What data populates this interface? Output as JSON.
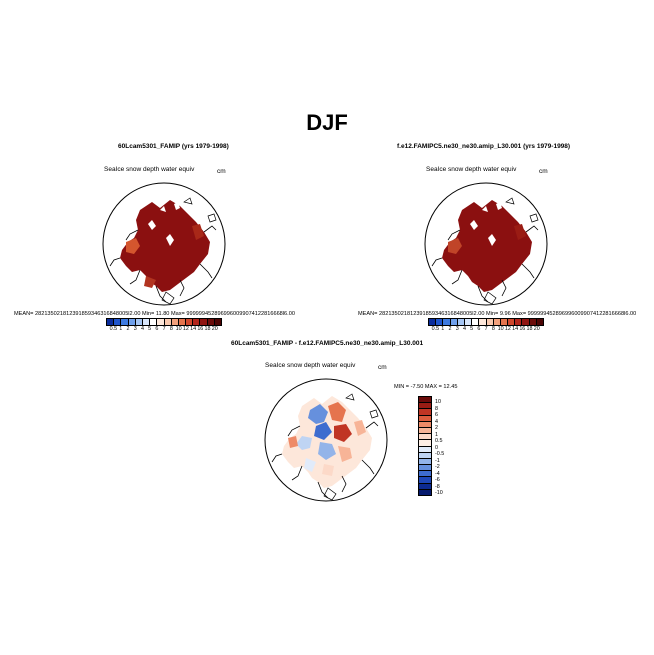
{
  "title": "DJF",
  "variable_label": "SeaIce snow depth water equiv",
  "units": "cm",
  "panels": [
    {
      "case": "60Lcam5301_FAMIP (yrs 1979-1998)",
      "stats": "MEAN= 282135021812391859346316848005l2.00 Min= 11.80 Max= 9999994528969960099074122816668l6.00",
      "field": "snow-depth"
    },
    {
      "case": "f.e12.FAMIPC5.ne30_ne30.amip_L30.001 (yrs 1979-1998)",
      "stats": "MEAN= 282135021812391859346316848005l2.00 Min= 9.96 Max= 9999994528969960099074122816668l6.00",
      "field": "snow-depth"
    }
  ],
  "difference_panel": {
    "case": "60Lcam5301_FAMIP - f.e12.FAMIPC5.ne30_ne30.amip_L30.001",
    "stats": "MIN = -7.50 MAX = 12.45"
  },
  "colorbar_levels": [
    "0.5",
    "1",
    "2",
    "3",
    "4",
    "5",
    "6",
    "7",
    "8",
    "10",
    "12",
    "14",
    "16",
    "18",
    "20"
  ],
  "colorbar_colors": [
    "#0a2c9c",
    "#1f55cc",
    "#3d7ae0",
    "#6fa0ec",
    "#a6c6f4",
    "#d8e6fb",
    "#ffffff",
    "#fde7da",
    "#f8c8ae",
    "#f2a07c",
    "#e5744e",
    "#d0472d",
    "#b2241b",
    "#8f1411",
    "#6b0b0a",
    "#4c0404"
  ],
  "diff_levels": [
    "10",
    "8",
    "6",
    "4",
    "2",
    "1",
    "0.5",
    "0",
    "-0.5",
    "-1",
    "-2",
    "-4",
    "-6",
    "-8",
    "-10"
  ],
  "diff_colors": [
    "#6b0b0a",
    "#9a1c14",
    "#c03524",
    "#dc5d3e",
    "#ee8a67",
    "#f7b497",
    "#fcd9c8",
    "#fdeee5",
    "#e1ebfa",
    "#bfd4f3",
    "#93b4e9",
    "#6690dd",
    "#3e6ccf",
    "#1e47b8",
    "#0c2a92",
    "#061a6e"
  ],
  "map_colors": {
    "snow_deep": "#8b1010",
    "snow_edge": "#a82818",
    "land": "#ffffff",
    "coast": "#000000"
  }
}
